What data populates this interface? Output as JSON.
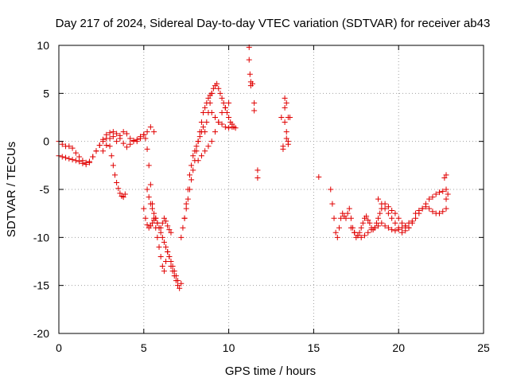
{
  "chart_data": {
    "type": "scatter",
    "title": "Day 217 of 2024, Sidereal Day-to-day VTEC variation (SDTVAR) for receiver ab43",
    "xlabel": "GPS time / hours",
    "ylabel": "SDTVAR / TECUs",
    "xlim": [
      0,
      25
    ],
    "ylim": [
      -20,
      10
    ],
    "xticks": [
      0,
      5,
      10,
      15,
      20,
      25
    ],
    "yticks": [
      -20,
      -15,
      -10,
      -5,
      0,
      5,
      10
    ],
    "grid": true,
    "marker": "+",
    "color": "#e00000",
    "series": [
      {
        "name": "ab43",
        "x": [
          0.0,
          0.2,
          0.4,
          0.6,
          0.8,
          1.0,
          1.2,
          1.4,
          1.6,
          1.8,
          2.0,
          2.2,
          2.4,
          2.6,
          2.8,
          3.0,
          3.2,
          3.4,
          3.6,
          3.8,
          4.0,
          4.2,
          4.4,
          4.6,
          4.8,
          5.0,
          5.2,
          5.4,
          5.6,
          0.0,
          0.2,
          0.4,
          0.6,
          0.8,
          1.0,
          1.2,
          1.4,
          1.6,
          1.8,
          2.0,
          2.2,
          2.4,
          2.6,
          2.8,
          3.0,
          3.1,
          3.2,
          3.3,
          3.4,
          3.5,
          3.6,
          3.7,
          3.8,
          3.9,
          2.6,
          2.8,
          3.0,
          3.2,
          3.4,
          3.6,
          3.8,
          4.0,
          4.2,
          4.4,
          4.6,
          4.8,
          5.0,
          5.1,
          5.2,
          5.3,
          5.4,
          5.5,
          5.6,
          5.7,
          5.8,
          5.9,
          6.0,
          6.1,
          6.2,
          6.3,
          6.4,
          6.5,
          6.6,
          6.7,
          6.8,
          6.9,
          7.0,
          7.1,
          7.2,
          5.0,
          5.1,
          5.2,
          5.3,
          5.4,
          5.5,
          5.6,
          5.7,
          5.8,
          5.9,
          6.0,
          6.1,
          6.2,
          6.3,
          6.4,
          6.5,
          6.6,
          6.7,
          6.8,
          6.9,
          7.0,
          5.2,
          5.3,
          5.4,
          5.5,
          5.6,
          5.7,
          5.8,
          5.9,
          6.0,
          6.1,
          6.2,
          6.3,
          6.4,
          6.5,
          6.6,
          7.2,
          7.3,
          7.4,
          7.5,
          7.6,
          7.7,
          7.8,
          7.9,
          8.0,
          8.1,
          8.2,
          8.3,
          8.4,
          8.5,
          8.6,
          8.7,
          8.8,
          8.9,
          9.0,
          7.4,
          7.5,
          7.6,
          7.7,
          7.8,
          7.9,
          8.0,
          8.1,
          8.2,
          8.3,
          8.4,
          8.5,
          8.6,
          8.7,
          8.8,
          8.9,
          9.0,
          9.1,
          9.2,
          9.3,
          9.4,
          9.5,
          9.6,
          9.7,
          9.8,
          9.9,
          10.0,
          10.1,
          10.2,
          10.3,
          10.4,
          8.2,
          8.4,
          8.6,
          8.8,
          9.0,
          9.2,
          9.4,
          9.6,
          9.8,
          10.0,
          9.0,
          9.2,
          9.4,
          9.6,
          9.8,
          10.0,
          10.2,
          11.2,
          11.2,
          11.25,
          11.3,
          11.3,
          11.4,
          11.5,
          11.5,
          11.7,
          11.7,
          13.1,
          13.2,
          13.2,
          13.3,
          13.3,
          13.3,
          13.4,
          13.4,
          13.4,
          13.5,
          13.5,
          13.5,
          13.6,
          15.3,
          16.0,
          16.1,
          16.2,
          16.3,
          16.4,
          16.5,
          16.6,
          16.7,
          16.8,
          16.9,
          17.0,
          17.1,
          17.2,
          17.3,
          17.4,
          17.5,
          17.6,
          17.7,
          17.8,
          17.9,
          18.0,
          18.1,
          18.2,
          18.3,
          18.4,
          18.5,
          18.6,
          18.7,
          18.8,
          18.9,
          19.0,
          19.2,
          19.4,
          19.6,
          19.8,
          20.0,
          20.2,
          20.4,
          20.6,
          17.2,
          17.4,
          17.6,
          17.8,
          18.0,
          18.2,
          18.4,
          18.6,
          18.8,
          19.0,
          19.2,
          19.4,
          19.6,
          19.8,
          20.0,
          20.2,
          20.4,
          20.6,
          20.8,
          18.8,
          19.0,
          19.2,
          19.4,
          19.6,
          19.8,
          20.0,
          20.2,
          20.4,
          20.6,
          20.8,
          21.0,
          21.2,
          21.4,
          21.6,
          21.8,
          22.0,
          22.2,
          22.4,
          22.6,
          22.8,
          21.0,
          21.2,
          21.4,
          21.6,
          21.8,
          22.0,
          22.2,
          22.4,
          22.6,
          22.8,
          22.7,
          22.8,
          22.8,
          22.9
        ],
        "y": [
          0.0,
          -0.3,
          -0.5,
          -0.5,
          -0.7,
          -1.2,
          -1.6,
          -2.0,
          -2.2,
          -2.1,
          -1.6,
          -1.0,
          -0.4,
          0.2,
          0.7,
          0.9,
          0.5,
          0.0,
          0.6,
          1.0,
          0.8,
          0.3,
          0.0,
          0.2,
          0.5,
          0.7,
          1.0,
          1.5,
          1.0,
          -1.5,
          -1.6,
          -1.7,
          -1.8,
          -1.9,
          -2.0,
          -2.1,
          -2.3,
          -2.4,
          -2.2,
          -1.6,
          -1.0,
          -0.4,
          0.0,
          0.3,
          -0.5,
          -1.5,
          -2.5,
          -3.5,
          -4.3,
          -4.9,
          -5.4,
          -5.7,
          -5.8,
          -5.5,
          -1.0,
          -0.4,
          0.3,
          1.0,
          0.8,
          0.3,
          -0.2,
          -0.6,
          -0.3,
          0.1,
          0.0,
          0.3,
          0.7,
          0.3,
          -0.8,
          -2.5,
          -4.5,
          -6.5,
          -8.0,
          -9.0,
          -10.0,
          -11.0,
          -12.0,
          -13.0,
          -13.5,
          -12.5,
          -11.5,
          -12.0,
          -13.0,
          -13.5,
          -14.0,
          -14.5,
          -15.0,
          -15.3,
          -14.8,
          -7.0,
          -8.0,
          -8.7,
          -9.0,
          -8.8,
          -8.5,
          -8.2,
          -8.0,
          -8.5,
          -9.0,
          -9.5,
          -10.0,
          -10.5,
          -11.0,
          -11.5,
          -12.0,
          -12.5,
          -13.0,
          -13.5,
          -14.0,
          -14.5,
          -5.0,
          -5.8,
          -6.5,
          -7.0,
          -7.5,
          -8.0,
          -8.5,
          -9.0,
          -9.0,
          -8.5,
          -8.0,
          -8.3,
          -8.8,
          -9.2,
          -9.5,
          -10.0,
          -9.0,
          -8.0,
          -7.0,
          -6.0,
          -5.0,
          -4.0,
          -3.0,
          -2.0,
          -1.0,
          0.0,
          1.0,
          2.0,
          3.0,
          3.5,
          4.0,
          4.5,
          4.8,
          5.0,
          -8.0,
          -6.5,
          -5.0,
          -3.5,
          -2.5,
          -1.5,
          -1.0,
          -0.5,
          0.0,
          0.5,
          1.0,
          1.5,
          1.0,
          2.0,
          3.0,
          4.0,
          5.0,
          5.5,
          5.8,
          6.0,
          5.5,
          5.0,
          4.5,
          4.0,
          3.5,
          3.0,
          2.5,
          2.0,
          1.8,
          1.5,
          1.4,
          -2.0,
          -1.5,
          -1.0,
          -0.5,
          0.0,
          1.0,
          2.0,
          3.0,
          3.5,
          4.0,
          3.0,
          2.5,
          2.0,
          1.8,
          1.5,
          1.4,
          1.5,
          9.8,
          8.5,
          7.0,
          6.2,
          5.8,
          6.0,
          4.0,
          3.2,
          -3.0,
          -3.8,
          2.5,
          -0.5,
          -0.8,
          4.5,
          3.5,
          2.0,
          1.0,
          0.3,
          4.0,
          2.5,
          0.0,
          -0.3,
          2.5,
          -3.7,
          -5.0,
          -6.5,
          -8.0,
          -9.5,
          -10.0,
          -9.0,
          -8.0,
          -7.5,
          -7.8,
          -8.0,
          -7.5,
          -7.0,
          -8.0,
          -9.0,
          -9.5,
          -10.0,
          -9.8,
          -9.5,
          -9.0,
          -8.5,
          -8.0,
          -7.8,
          -8.2,
          -8.5,
          -9.0,
          -9.2,
          -9.0,
          -8.5,
          -8.0,
          -7.5,
          -7.0,
          -6.5,
          -6.8,
          -7.2,
          -7.5,
          -8.0,
          -8.5,
          -8.8,
          -9.0,
          -9.0,
          -9.5,
          -9.8,
          -10.0,
          -9.8,
          -9.5,
          -9.2,
          -9.0,
          -8.8,
          -8.5,
          -8.8,
          -9.0,
          -9.2,
          -9.3,
          -9.2,
          -9.0,
          -8.8,
          -8.5,
          -8.3,
          -6.0,
          -6.5,
          -7.0,
          -7.5,
          -8.0,
          -8.5,
          -9.0,
          -9.5,
          -9.3,
          -9.0,
          -8.5,
          -8.0,
          -7.5,
          -7.0,
          -6.5,
          -6.0,
          -5.8,
          -5.5,
          -5.3,
          -5.2,
          -5.0,
          -7.5,
          -7.2,
          -7.0,
          -6.8,
          -7.0,
          -7.3,
          -7.5,
          -7.5,
          -7.3,
          -7.0,
          -3.8,
          -3.5,
          -6.0,
          -5.5
        ]
      }
    ]
  }
}
